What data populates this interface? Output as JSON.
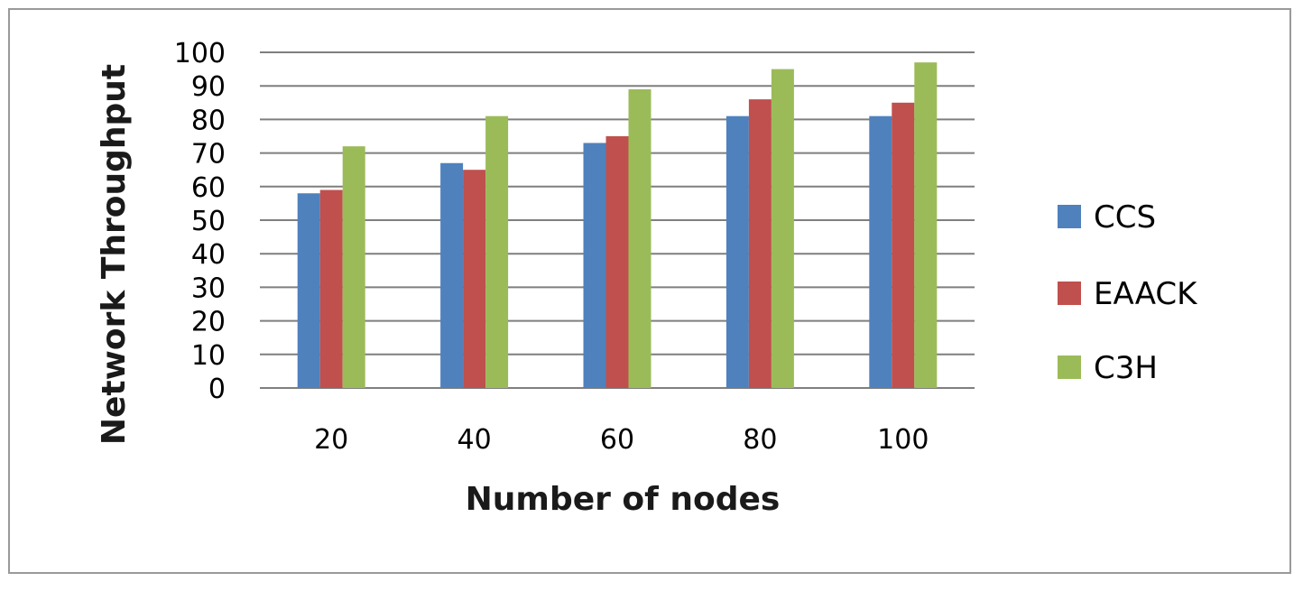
{
  "chart_data": {
    "type": "bar",
    "title": "",
    "xlabel": "Number of nodes",
    "ylabel": "Network  Throughput",
    "categories": [
      "20",
      "40",
      "60",
      "80",
      "100"
    ],
    "ylim": [
      0,
      100
    ],
    "yticks": [
      0,
      10,
      20,
      30,
      40,
      50,
      60,
      70,
      80,
      90,
      100
    ],
    "grid": true,
    "legend_position": "right",
    "series": [
      {
        "name": "CCS",
        "color": "#4f81bd",
        "values": [
          58,
          67,
          73,
          81,
          81
        ]
      },
      {
        "name": "EAACK",
        "color": "#c0504d",
        "values": [
          59,
          65,
          75,
          86,
          85
        ]
      },
      {
        "name": "C3H",
        "color": "#9bbb59",
        "values": [
          72,
          81,
          89,
          95,
          97
        ]
      }
    ]
  }
}
